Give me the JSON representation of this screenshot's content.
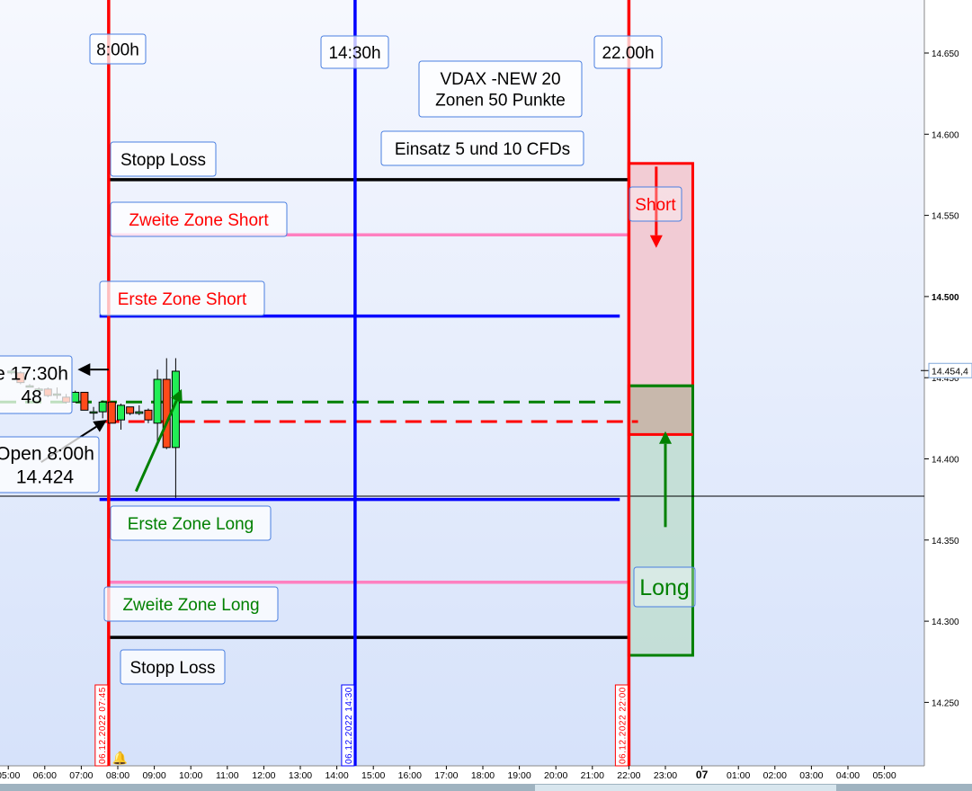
{
  "chart_data": {
    "type": "candlestick",
    "price_axis": {
      "ticks": [
        14650,
        14600,
        14550,
        14500,
        14450,
        14400,
        14350,
        14300,
        14250
      ],
      "tick_labels": [
        "14.650",
        "14.600",
        "14.550",
        "14.500",
        "14.450",
        "14.400",
        "14.350",
        "14.300",
        "14.250"
      ],
      "ylim": [
        14212,
        14683
      ],
      "current_price_label": "14.454,4",
      "current_price": 14454.4
    },
    "time_axis": {
      "tick_labels": [
        "05:00",
        "06:00",
        "07:00",
        "08:00",
        "09:00",
        "10:00",
        "11:00",
        "12:00",
        "13:00",
        "14:00",
        "15:00",
        "16:00",
        "17:00",
        "18:00",
        "19:00",
        "20:00",
        "21:00",
        "22:00",
        "23:00",
        "07",
        "01:00",
        "02:00",
        "03:00",
        "04:00",
        "05:00"
      ]
    },
    "candles": [
      {
        "t": "05:00",
        "o": 14453,
        "h": 14455,
        "l": 14452,
        "c": 14454
      },
      {
        "t": "05:15",
        "o": 14453,
        "h": 14454,
        "l": 14446,
        "c": 14447
      },
      {
        "t": "05:30",
        "o": 14445,
        "h": 14446,
        "l": 14444,
        "c": 14445
      },
      {
        "t": "05:45",
        "o": 14443,
        "h": 14444,
        "l": 14442,
        "c": 14443
      },
      {
        "t": "06:00",
        "o": 14443,
        "h": 14444,
        "l": 14438,
        "c": 14439
      },
      {
        "t": "06:15",
        "o": 14440,
        "h": 14444,
        "l": 14437,
        "c": 14440
      },
      {
        "t": "06:30",
        "o": 14438,
        "h": 14440,
        "l": 14434,
        "c": 14435
      },
      {
        "t": "06:45",
        "o": 14435,
        "h": 14442,
        "l": 14435,
        "c": 14441
      },
      {
        "t": "07:00",
        "o": 14441,
        "h": 14441,
        "l": 14430,
        "c": 14430
      },
      {
        "t": "07:15",
        "o": 14429,
        "h": 14432,
        "l": 14424,
        "c": 14429
      },
      {
        "t": "07:30",
        "o": 14429,
        "h": 14436,
        "l": 14425,
        "c": 14435
      },
      {
        "t": "07:45",
        "o": 14435,
        "h": 14435,
        "l": 14422,
        "c": 14422
      },
      {
        "t": "08:00",
        "o": 14424,
        "h": 14434,
        "l": 14418,
        "c": 14433
      },
      {
        "t": "08:15",
        "o": 14432,
        "h": 14432,
        "l": 14427,
        "c": 14428
      },
      {
        "t": "08:30",
        "o": 14428,
        "h": 14433,
        "l": 14427,
        "c": 14429
      },
      {
        "t": "08:45",
        "o": 14430,
        "h": 14431,
        "l": 14422,
        "c": 14424
      },
      {
        "t": "09:00",
        "o": 14422,
        "h": 14455,
        "l": 14410,
        "c": 14449
      },
      {
        "t": "09:15",
        "o": 14449,
        "h": 14462,
        "l": 14406,
        "c": 14407
      },
      {
        "t": "09:30",
        "o": 14407,
        "h": 14462,
        "l": 14376,
        "c": 14454
      }
    ],
    "vertical_lines": [
      {
        "time": "07:45",
        "color": "#ff0000",
        "label": "06.12.2022 07:45"
      },
      {
        "time": "14:30",
        "color": "#0000ff",
        "label": "06.12.2022 14:30"
      },
      {
        "time": "22:00",
        "color": "#ff0000",
        "label": "06.12.2022 22:00"
      }
    ],
    "horizontal_lines": [
      {
        "price": 14572,
        "color": "#000000",
        "from": "07:45",
        "to": "22:00",
        "style": "solid"
      },
      {
        "price": 14538,
        "color": "#ff80c0",
        "from": "07:45",
        "to": "22:00",
        "style": "solid"
      },
      {
        "price": 14488,
        "color": "#0000ff",
        "from": "07:30",
        "to": "21:45",
        "style": "solid"
      },
      {
        "price": 14435,
        "color": "#008000",
        "from": "04:36",
        "to": "22:00",
        "style": "dashed"
      },
      {
        "price": 14423,
        "color": "#ff0000",
        "from": "07:36",
        "to": "22:15",
        "style": "dashed"
      },
      {
        "price": 14377,
        "color": "#000000",
        "from": "04:36",
        "to": "",
        "style": "thin"
      },
      {
        "price": 14375,
        "color": "#0000ff",
        "from": "07:30",
        "to": "21:45",
        "style": "solid"
      },
      {
        "price": 14324,
        "color": "#ff80c0",
        "from": "07:45",
        "to": "22:00",
        "style": "solid"
      },
      {
        "price": 14290,
        "color": "#000000",
        "from": "07:45",
        "to": "22:00",
        "style": "solid"
      }
    ],
    "zones": [
      {
        "top": 14582,
        "bottom": 14415,
        "from": "22:00",
        "to": "23:45",
        "stroke": "#ff0000",
        "fill": "#f2c4cc"
      },
      {
        "top": 14445,
        "bottom": 14279,
        "from": "22:00",
        "to": "23:45",
        "stroke": "#008000",
        "fill": "#c0ddd0"
      }
    ],
    "arrows": [
      {
        "color": "#ff0000",
        "from": [
          "22:45",
          14580
        ],
        "to": [
          "22:45",
          14530
        ]
      },
      {
        "color": "#008000",
        "from": [
          "23:00",
          14358
        ],
        "to": [
          "23:00",
          14417
        ]
      },
      {
        "color": "#008000",
        "from": [
          "08:30",
          14380
        ],
        "to": [
          "09:45",
          14443
        ]
      },
      {
        "color": "#000000",
        "from": [
          "07:45",
          14455
        ],
        "to": [
          "06:54",
          14455
        ]
      },
      {
        "color": "#000000",
        "from": [
          "05:54",
          14398
        ],
        "to": [
          "07:42",
          14424
        ]
      }
    ],
    "annotations": [
      {
        "lines": [
          "8:00h"
        ],
        "color": "#000000"
      },
      {
        "lines": [
          "14:30h"
        ],
        "color": "#000000"
      },
      {
        "lines": [
          "22.00h"
        ],
        "color": "#000000"
      },
      {
        "lines": [
          "VDAX -NEW 20",
          "Zonen 50  Punkte"
        ],
        "color": "#000000"
      },
      {
        "lines": [
          "Einsatz 5 und 10 CFDs"
        ],
        "color": "#000000"
      },
      {
        "lines": [
          "Stopp Loss"
        ],
        "color": "#000000"
      },
      {
        "lines": [
          "Zweite Zone Short"
        ],
        "color": "#ff0000"
      },
      {
        "lines": [
          "Erste Zone Short"
        ],
        "color": "#ff0000"
      },
      {
        "lines": [
          "Short"
        ],
        "color": "#ff0000"
      },
      {
        "lines": [
          "e 17:30h",
          "48"
        ],
        "color": "#000000"
      },
      {
        "lines": [
          "Open 8:00h",
          "14.424"
        ],
        "color": "#000000"
      },
      {
        "lines": [
          "Erste Zone Long"
        ],
        "color": "#008000"
      },
      {
        "lines": [
          "Long"
        ],
        "color": "#008000"
      },
      {
        "lines": [
          "Zweite Zone Long"
        ],
        "color": "#008000"
      },
      {
        "lines": [
          "Stopp Loss"
        ],
        "color": "#000000"
      }
    ],
    "colors": {
      "up": "#22ee55",
      "down": "#ff4a1a",
      "bg_top": "#f6f8fe",
      "bg_bottom": "#d6e2fa"
    }
  }
}
